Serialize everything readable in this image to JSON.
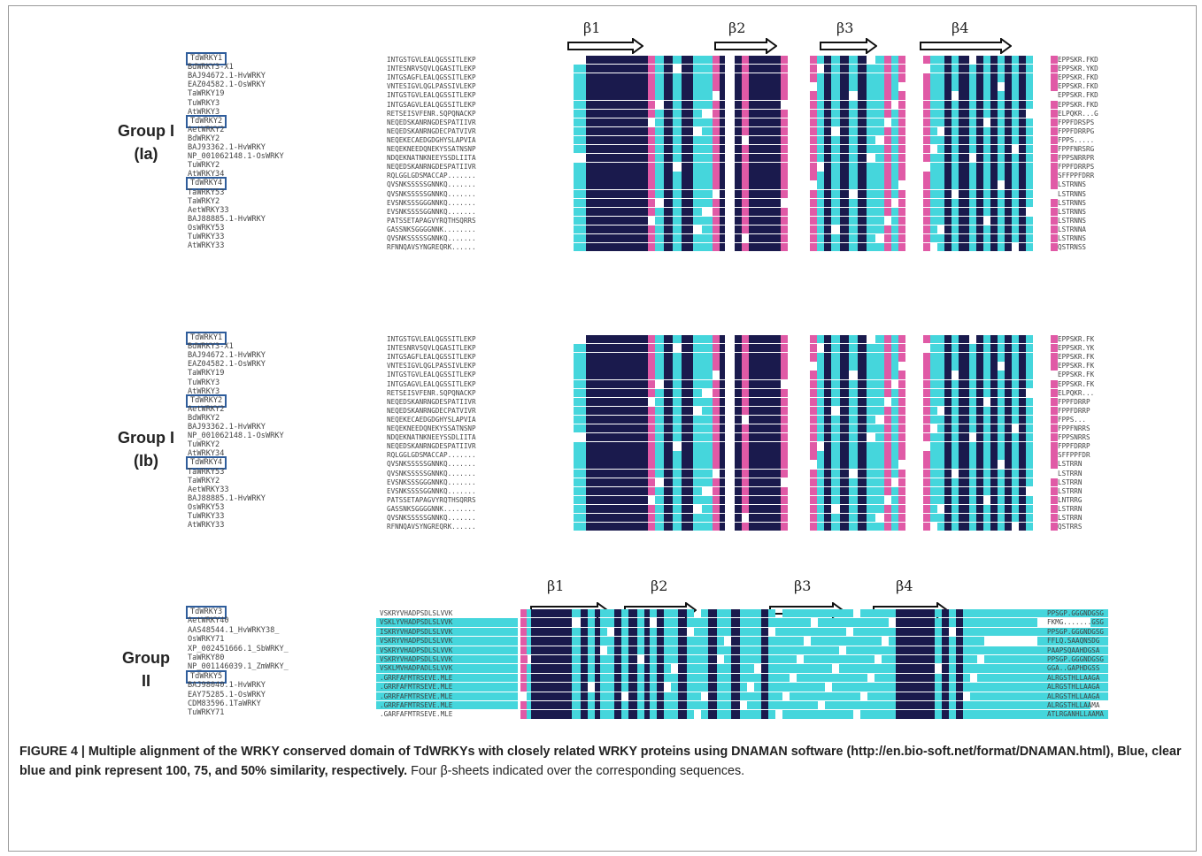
{
  "colors": {
    "blue": "#1a1a4d",
    "clear_blue": "#45d6dc",
    "pink": "#e05aa6",
    "box": "#2f5d9b"
  },
  "groups": [
    {
      "label_line1": "Group I",
      "label_line2": "(Ia)",
      "betas": [
        "β1",
        "β2",
        "β3",
        "β4"
      ],
      "names": [
        "TdWRKY1",
        "BdWRKY3-X1",
        "BAJ94672.1-HvWRKY",
        "EAZ04582.1-OsWRKY",
        "TaWRKY19",
        "TuWRKY3",
        "AtWRKY3",
        "TdWRKY2",
        "AetWRKY2",
        "BdWRKY2",
        "BAJ93362.1-HvWRKY",
        "NP_001062148.1-OsWRKY",
        "TuWRKY2",
        "AtWRKY34",
        "TdWRKY4",
        "TaWRKY53",
        "TaWRKY2",
        "AetWRKY33",
        "BAJ88885.1-HvWRKY",
        "OsWRKY53",
        "TuWRKY33",
        "AtWRKY33"
      ],
      "boxed": [
        "TdWRKY1",
        "TdWRKY2",
        "TdWRKY4"
      ],
      "seqs": [
        "INTGSTGVLEALQGSSITLEKP",
        "INTESNRVSQVLQGASITLEKP",
        "INTGSAGFLEALQGSSITLEKP",
        "VNTESIGVLQGLPASSIVLEKP",
        "INTGSTGVLEALQGSSITLEKP",
        "INTGSAGVLEALQGSSITLEKP",
        "RETSEISVFENR.SQPQNACKP",
        "NEQEDSKANRNGDESPATIIVR",
        "NEQEDSKANRNGDECPATVIVR",
        "NEQEKECAEDGDGHYSLAPVIA",
        "NEQEKNEEDQNEKYSSATNSNP",
        "NDQEKNATNKNEEYSSDLIITA",
        "NEQEDSKANRNGDESPATIIVR",
        "RQLGGLGDSMACCAP.......",
        "QVSNKSSSSSGNNKQ.......",
        "QVSNKSSSSSGNNKQ.......",
        "EVSNKSSSGGGNNKQ.......",
        "EVSNKSSSSGGNNKQ.......",
        "PATSSETAPAGVYRQTHSQRRS",
        "GASSNKSGGGGNNK........",
        "QVSNKSSSSSGNNKQ.......",
        "RFNNQAVSYNGREQRK......"
      ],
      "tails": [
        "EPPSKR.FKD",
        "EPPSKR.YKD",
        "EPPSKR.FKD",
        "EPPSKR.FKD",
        "EPPSKR.FKD",
        "EPPSKR.FKD",
        "ELPQKR...G",
        "FPPFDRSPS",
        "FPPFDRRPG",
        "FPPS.....",
        "FPPFNRSRG",
        "FPPSNRRPR",
        "FPPFDRRPS",
        "SFFPPFDRR",
        "LSTRNNS",
        "LSTRNNS",
        "LSTRNNS",
        "LSTRNNS",
        "LSTRNNS",
        "LSTRNNA",
        "LSTRNNS",
        "QSTRNSS"
      ]
    },
    {
      "label_line1": "Group I",
      "label_line2": "(Ib)",
      "betas": [],
      "names": [
        "TdWRKY1",
        "BdWRKY3-X1",
        "BAJ94672.1-HvWRKY",
        "EAZ04582.1-OsWRKY",
        "TaWRKY19",
        "TuWRKY3",
        "AtWRKY3",
        "TdWRKY2",
        "AetWRKY2",
        "BdWRKY2",
        "BAJ93362.1-HvWRKY",
        "NP_001062148.1-OsWRKY",
        "TuWRKY2",
        "AtWRKY34",
        "TdWRKY4",
        "TaWRKY53",
        "TaWRKY2",
        "AetWRKY33",
        "BAJ88885.1-HvWRKY",
        "OsWRKY53",
        "TuWRKY33",
        "AtWRKY33"
      ],
      "boxed": [
        "TdWRKY1",
        "TdWRKY2",
        "TdWRKY4"
      ],
      "seqs": [
        "INTGSTGVLEALQGSSITLEKP",
        "INTESNRVSQVLQGASITLEKP",
        "INTGSAGFLEALQGSSITLEKP",
        "VNTESIGVLQGLPASSIVLEKP",
        "INTGSTGVLEALQGSSITLEKP",
        "INTGSAGVLEALQGSSITLEKP",
        "RETSEISVFENR.SQPQNACKP",
        "NEQEDSKANRNGDESPATIIVR",
        "NEQEDSKANRNGDECPATVIVR",
        "NEQEKECAEDGDGHYSLAPVIA",
        "NEQEKNEEDQNEKYSSATNSNP",
        "NDQEKNATNKNEEYSSDLIITA",
        "NEQEDSKANRNGDESPATIIVR",
        "RQLGGLGDSMACCAP.......",
        "QVSNKSSSSSGNNKQ.......",
        "QVSNKSSSSSGNNKQ.......",
        "EVSNKSSSGGGNNKQ.......",
        "EVSNKSSSSGGNNKQ.......",
        "PATSSETAPAGVYRQTHSQRRS",
        "GASSNKSGGGGNNK........",
        "QVSNKSSSSSGNNKQ.......",
        "RFNNQAVSYNGREQRK......"
      ],
      "tails": [
        "EPPSKR.FK",
        "EPPSKR.YK",
        "EPPSKR.FK",
        "EPPSKR.FK",
        "EPPSKR.FK",
        "EPPSKR.FK",
        "ELPQKR...",
        "FPPFDRRP",
        "FPPFDRRP",
        "FPPS...",
        "FPPFNRRS",
        "FPPSNRRS",
        "FPPFDRRP",
        "SFFPPFDR",
        "LSTRRN",
        "LSTRRN",
        "LSTRRN",
        "LSTRRN",
        "LNTRRG",
        "LSTRRN",
        "LSTRRN",
        "QSTRRS"
      ]
    },
    {
      "label_line1": "Group",
      "label_line2": "II",
      "betas": [
        "β1",
        "β2",
        "β3",
        "β4"
      ],
      "names": [
        "TdWRKY3",
        "AetWRKY40",
        "AAS48544.1_HvWRKY38_",
        "OsWRKY71",
        "XP_002451666.1_SbWRKY_",
        "TaWRKY80",
        "NP_001146039.1_ZmWRKY_",
        "TdWRKY5",
        "BAJ98040.1-HvWRKY",
        "EAY75285.1-OsWRKY",
        "CDM83596.1TaWRKY",
        "TuWRKY71"
      ],
      "boxed": [
        "TdWRKY3",
        "TdWRKY5"
      ],
      "seqs": [
        "VSKRYVHADPSDLSLVVK",
        "VSKLYVHADPSDLSLVVK",
        "ISKRYVHADPSDLSLVVK",
        "VSKRYVHADPSDLSLVVK",
        "VSKRYVHADPSDLSLVVK",
        "VSKRYVHADPSDLSLVVK",
        "VSKLMVHADPADLSLVVK",
        ".GRRFAFMTRSEVE.MLE",
        ".GRRFAFMTRSEVE.MLE",
        ".GRRFAFMTRSEVE.MLE",
        ".GRRFAFMTRSEVE.MLE",
        ".GARFAFMTRSEVE.MLE"
      ],
      "tails": [
        "PPSGP.GGGNDGSG",
        "FKMG.......GSG",
        "PPSGP.GGGNDGSG",
        "FFLQ.SAAQNSDG",
        "PAAPSQAAHDGSA",
        "PPSGP.GGGNDGSG",
        "GGA..GAPHDGSS",
        "ALRGSTHLLAAGA",
        "ALRGSTHLLAAGA",
        "ALRGSTHLLAAGA",
        "ALRGSTHLLAAMA",
        "ATLRGANHLLAAMA"
      ]
    }
  ],
  "caption": {
    "bold_part": "FIGURE 4 | Multiple alignment of the WRKY conserved domain of TdWRKYs with closely related WRKY proteins using DNAMAN software (http://en.bio-soft.net/format/DNAMAN.html), Blue, clear blue and pink represent 100, 75, and 50% similarity, respectively.",
    "regular_part": "Four β-sheets indicated over the corresponding sequences."
  }
}
